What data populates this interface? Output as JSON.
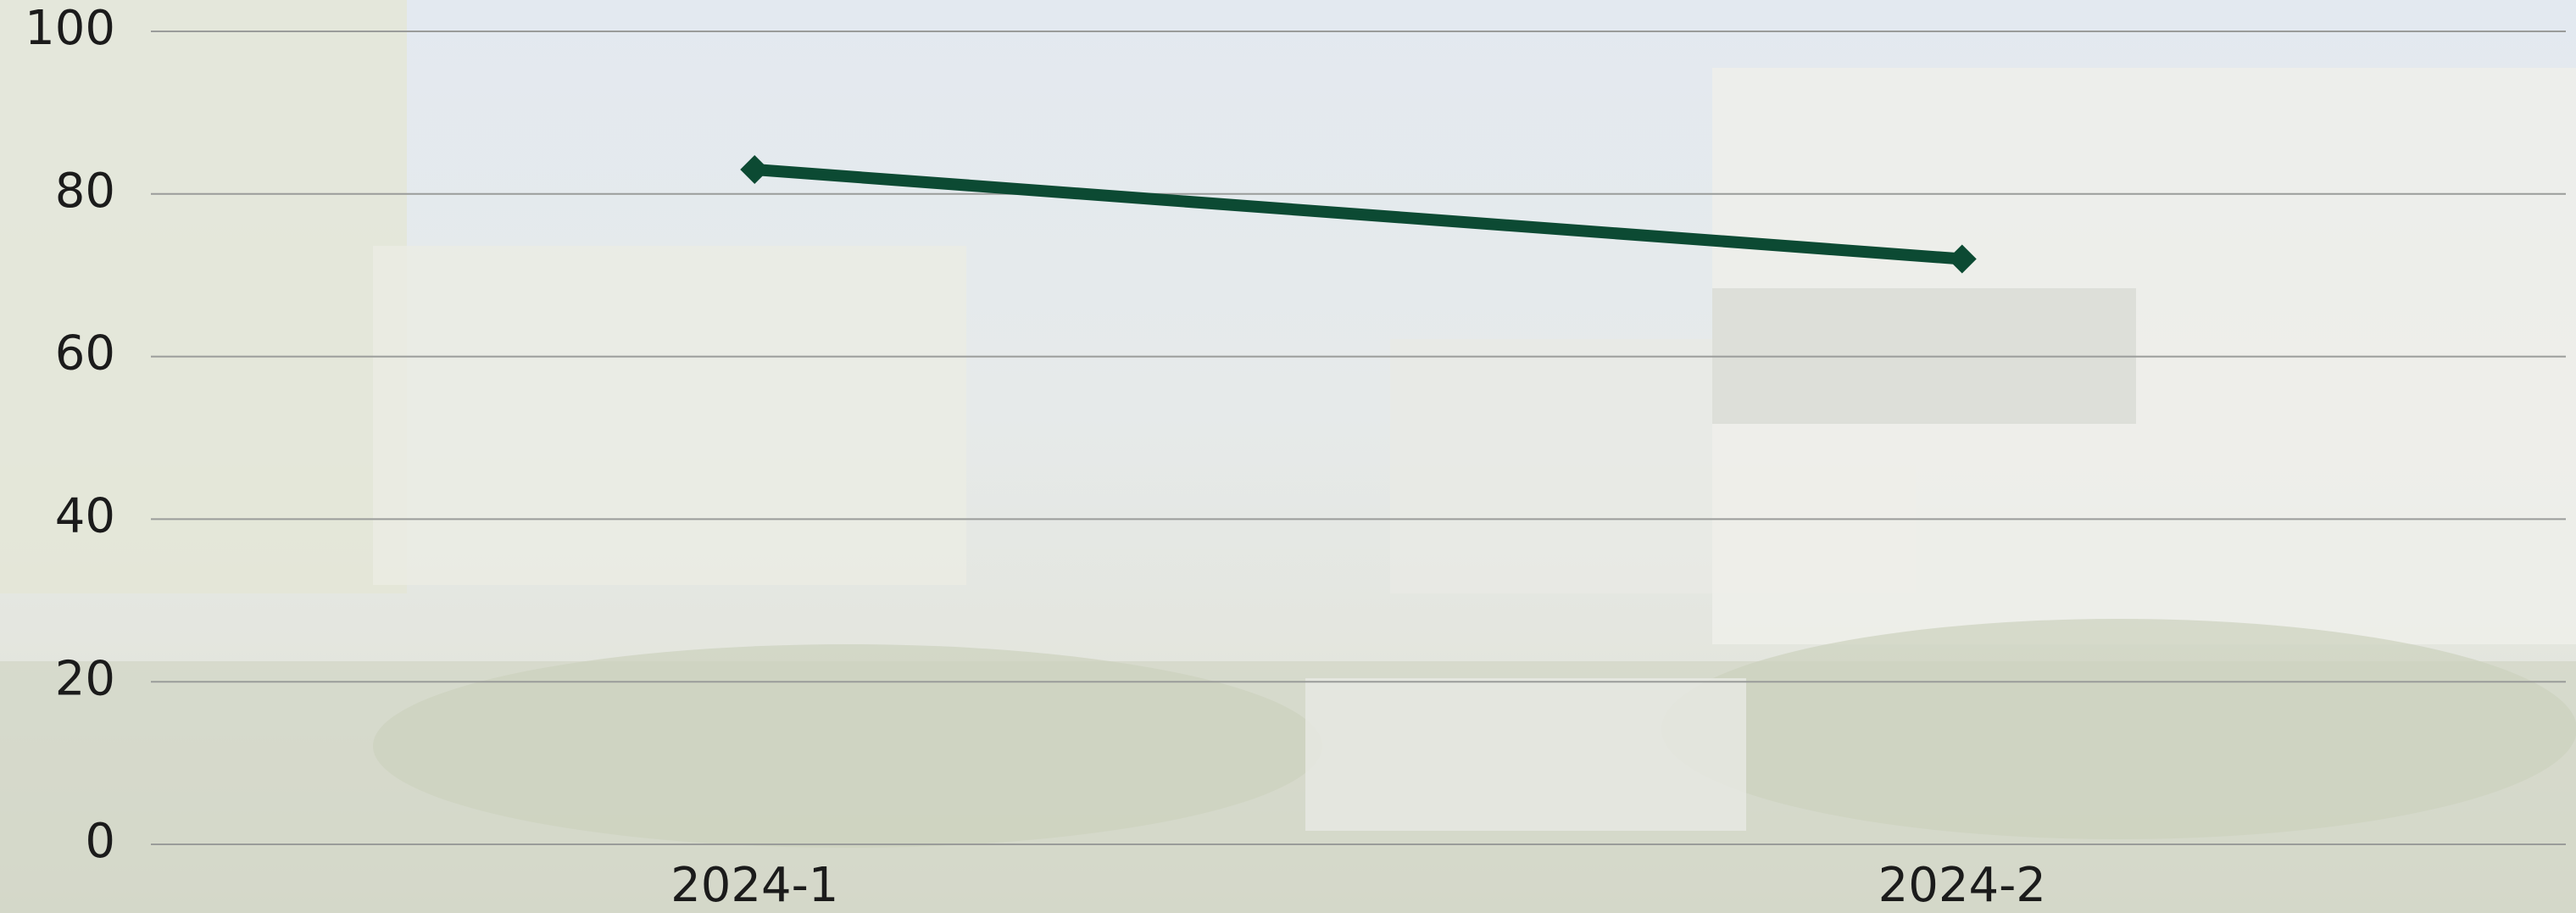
{
  "chart_data": {
    "type": "line",
    "categories": [
      "2024-1",
      "2024-2"
    ],
    "series": [
      {
        "color": "#0c4a33",
        "values": [
          83,
          72
        ]
      }
    ],
    "ylim": [
      0,
      100
    ],
    "yticks": [
      0,
      20,
      40,
      60,
      80,
      100
    ],
    "grid": true
  }
}
